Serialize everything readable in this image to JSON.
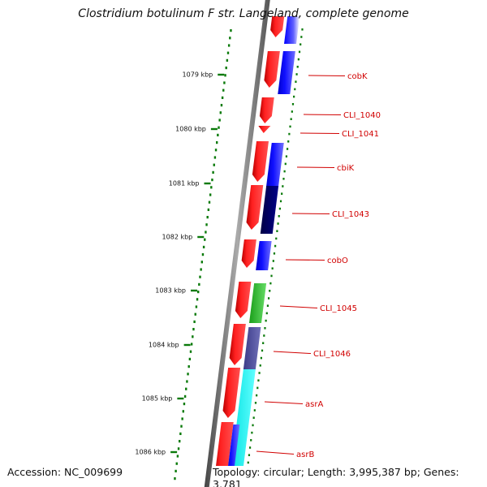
{
  "title": "Clostridium botulinum F str. Langeland, complete genome",
  "footer": {
    "accession": "Accession: NC_009699",
    "summary": "Topology: circular; Length: 3,995,387 bp; Genes: 3,781"
  },
  "kbp_ticks": [
    {
      "label": "1079 kbp"
    },
    {
      "label": "1080 kbp"
    },
    {
      "label": "1081 kbp"
    },
    {
      "label": "1082 kbp"
    },
    {
      "label": "1083 kbp"
    },
    {
      "label": "1084 kbp"
    },
    {
      "label": "1085 kbp"
    },
    {
      "label": "1086 kbp"
    }
  ],
  "gene_labels": [
    {
      "name": "cobK"
    },
    {
      "name": "CLI_1040"
    },
    {
      "name": "CLI_1041"
    },
    {
      "name": "cbiK"
    },
    {
      "name": "CLI_1043"
    },
    {
      "name": "cobO"
    },
    {
      "name": "CLI_1045"
    },
    {
      "name": "CLI_1046"
    },
    {
      "name": "asrA"
    },
    {
      "name": "asrB"
    }
  ],
  "colors": {
    "cds_strand": "#ff0000",
    "function_blue": "#0000ff",
    "function_navy": "#000066",
    "function_green": "#33cc33",
    "function_slate": "#4b4b9a",
    "function_cyan": "#00ffff",
    "backbone": "#888888",
    "gc_skew": "#0a7a0a",
    "label_red": "#d10000"
  }
}
